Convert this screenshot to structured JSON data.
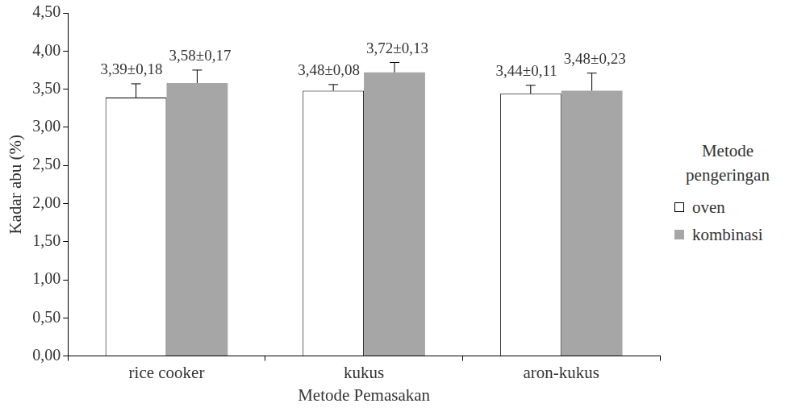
{
  "chart_data": {
    "type": "bar",
    "categories": [
      "rice cooker",
      "kukus",
      "aron-kukus"
    ],
    "x_label": "Metode Pemasakan",
    "y_label": "Kadar abu (%)",
    "legend_title": "Metode pengeringan",
    "legend": "right",
    "grid": false,
    "data_labels": true,
    "ylim": [
      0,
      4.5
    ],
    "yticks": [
      {
        "value": 0,
        "label": "0,00"
      },
      {
        "value": 0.5,
        "label": "0,50"
      },
      {
        "value": 1,
        "label": "1,00"
      },
      {
        "value": 1.5,
        "label": "1,50"
      },
      {
        "value": 2,
        "label": "2,00"
      },
      {
        "value": 2.5,
        "label": "2,50"
      },
      {
        "value": 3,
        "label": "3,00"
      },
      {
        "value": 3.5,
        "label": "3,50"
      },
      {
        "value": 4,
        "label": "4,00"
      },
      {
        "value": 4.5,
        "label": "4,50"
      }
    ],
    "series": [
      {
        "name": "oven",
        "color": "#ffffff",
        "values": [
          3.39,
          3.48,
          3.44
        ],
        "errors": [
          0.18,
          0.08,
          0.11
        ],
        "value_labels": [
          "3,39±0,18",
          "3,48±0,08",
          "3,44±0,11"
        ]
      },
      {
        "name": "kombinasi",
        "color": "#a6a6a6",
        "values": [
          3.58,
          3.72,
          3.48
        ],
        "errors": [
          0.17,
          0.13,
          0.23
        ],
        "value_labels": [
          "3,58±0,17",
          "3,72±0,13",
          "3,48±0,23"
        ]
      }
    ]
  }
}
